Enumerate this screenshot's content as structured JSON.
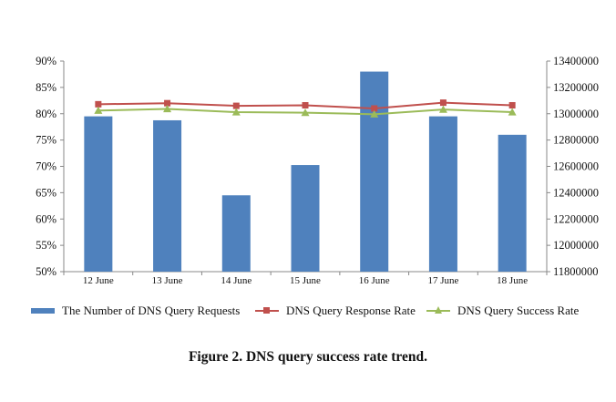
{
  "chart_data": {
    "type": "bar",
    "caption": "Figure 2. DNS query success rate trend.",
    "categories": [
      "12 June",
      "13 June",
      "14 June",
      "15 June",
      "16 June",
      "17 June",
      "18 June"
    ],
    "series": [
      {
        "name": "The Number of DNS Query Requests",
        "type": "bar",
        "axis": "right",
        "values": [
          12980000,
          12950000,
          12380000,
          12610000,
          13320000,
          12980000,
          12840000
        ]
      },
      {
        "name": "DNS Query Response Rate",
        "type": "line",
        "axis": "left",
        "marker": "square",
        "values": [
          81.8,
          82.0,
          81.5,
          81.6,
          81.0,
          82.1,
          81.6
        ]
      },
      {
        "name": "DNS Query Success Rate",
        "type": "line",
        "axis": "left",
        "marker": "triangle",
        "values": [
          80.6,
          80.9,
          80.3,
          80.2,
          79.9,
          80.8,
          80.3
        ]
      }
    ],
    "y_left": {
      "min": 50,
      "max": 90,
      "step": 5,
      "tick_labels": [
        "50%",
        "55%",
        "60%",
        "65%",
        "70%",
        "75%",
        "80%",
        "85%",
        "90%"
      ]
    },
    "y_right": {
      "min": 11800000,
      "max": 13400000,
      "step": 200000,
      "tick_labels": [
        "11800000",
        "12000000",
        "12200000",
        "12400000",
        "12600000",
        "12800000",
        "13000000",
        "13200000",
        "13400000"
      ]
    },
    "grid": false,
    "legend_position": "bottom",
    "colors": {
      "bar": "#4f81bd",
      "response": "#c0504d",
      "success": "#9bbb59"
    }
  }
}
